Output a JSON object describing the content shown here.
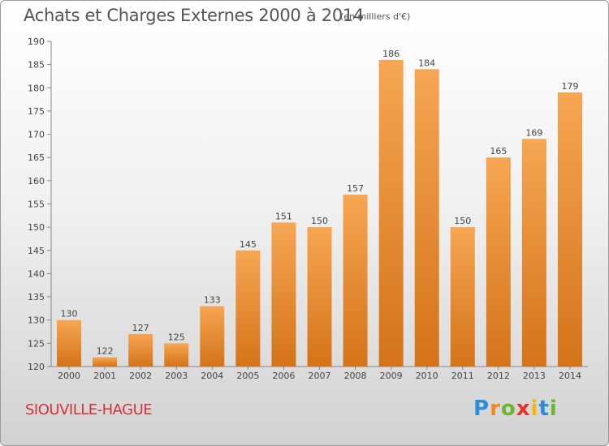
{
  "title": "Achats et Charges Externes 2000 à 2014",
  "subtitle": "(en milliers d'€)",
  "commune": "SIOUVILLE-HAGUE",
  "logo": {
    "text": "Proxiti",
    "letter_colors": [
      "#2a8fd6",
      "#f08a1c",
      "#6bb52f",
      "#e8312c",
      "#f5b800",
      "#2a8fd6",
      "#6bb52f"
    ]
  },
  "colors": {
    "bar_light": "#f6a652",
    "bar_dark": "#d4731a",
    "label": "#444444",
    "title": "#555555",
    "commune": "#d0333a"
  },
  "chart_data": {
    "type": "bar",
    "categories": [
      "2000",
      "2001",
      "2002",
      "2003",
      "2004",
      "2005",
      "2006",
      "2007",
      "2008",
      "2009",
      "2010",
      "2011",
      "2012",
      "2013",
      "2014"
    ],
    "values": [
      130,
      122,
      127,
      125,
      133,
      145,
      151,
      150,
      157,
      186,
      184,
      150,
      165,
      169,
      179
    ],
    "ylim": [
      120,
      190
    ],
    "yticks": [
      120,
      125,
      130,
      135,
      140,
      145,
      150,
      155,
      160,
      165,
      170,
      175,
      180,
      185,
      190
    ],
    "grid": false,
    "xlabel": "",
    "ylabel": ""
  }
}
